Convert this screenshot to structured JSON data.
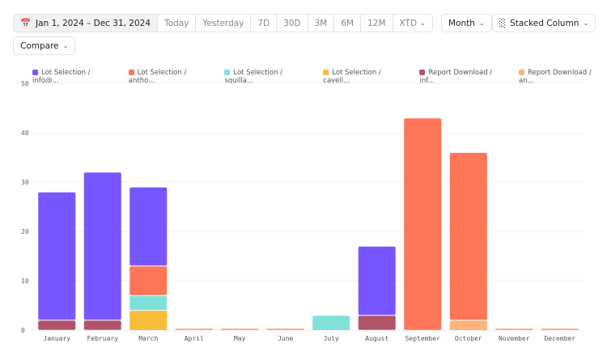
{
  "toolbar": {
    "date_range": "Jan 1, 2024 – Dec 31, 2024",
    "presets": [
      "Today",
      "Yesterday",
      "7D",
      "30D",
      "3M",
      "6M",
      "12M",
      "XTD"
    ],
    "interval": "Month",
    "chart_type": "Stacked Column",
    "compare": "Compare"
  },
  "icons": {
    "calendar": "calendar-icon",
    "chart": "bar-chart-icon",
    "chevron": "chevron-down-icon"
  },
  "chart_data": {
    "type": "bar",
    "stacked": true,
    "categories": [
      "January",
      "February",
      "March",
      "April",
      "May",
      "June",
      "July",
      "August",
      "September",
      "October",
      "November",
      "December"
    ],
    "ylim": [
      0,
      50
    ],
    "yticks": [
      0,
      10,
      20,
      30,
      40,
      50
    ],
    "grid": true,
    "legend_position": "top",
    "series": [
      {
        "name": "Report Download / an...",
        "color": "#FFB27A",
        "values": [
          0,
          0,
          0,
          0,
          0,
          0,
          0,
          0,
          0,
          2,
          0,
          0
        ]
      },
      {
        "name": "Report Download / inf...",
        "color": "#B0546A",
        "values": [
          2,
          2,
          0,
          0,
          0,
          0,
          0,
          3,
          0,
          0,
          0,
          0
        ]
      },
      {
        "name": "Lot Selection / cavell...",
        "color": "#F8BC3B",
        "values": [
          0,
          0,
          4,
          0,
          0,
          0,
          0,
          0,
          0,
          0,
          0,
          0
        ]
      },
      {
        "name": "Lot Selection / squilla...",
        "color": "#80E1D9",
        "values": [
          0,
          0,
          3,
          0,
          0,
          0,
          3,
          0,
          0,
          0,
          0,
          0
        ]
      },
      {
        "name": "Lot Selection / antho...",
        "color": "#FF7557",
        "values": [
          0,
          0,
          6,
          0,
          0,
          0,
          0,
          0,
          43,
          34,
          0,
          0
        ]
      },
      {
        "name": "Lot Selection / info@...",
        "color": "#7856FF",
        "values": [
          26,
          30,
          16,
          0,
          0,
          0,
          0,
          14,
          0,
          0,
          0,
          0
        ]
      }
    ],
    "legend_order": [
      5,
      4,
      3,
      2,
      1,
      0
    ]
  }
}
